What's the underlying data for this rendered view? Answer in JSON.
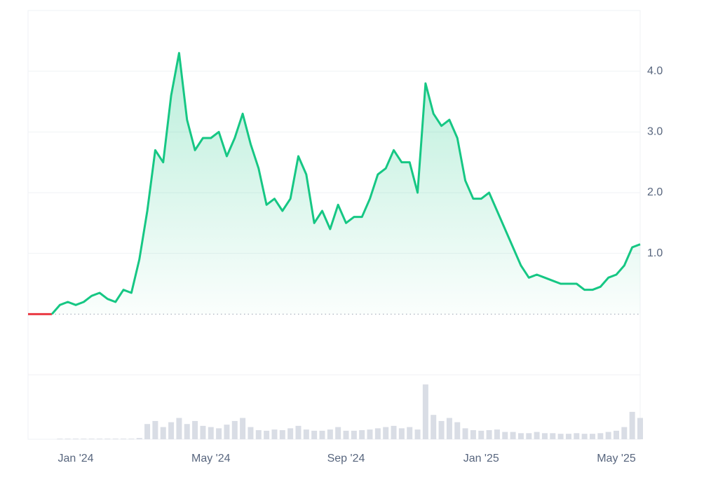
{
  "chart_data": {
    "type": "line",
    "categories": [
      null,
      null,
      null,
      null,
      null,
      null,
      "Jan '24",
      null,
      null,
      null,
      null,
      null,
      null,
      null,
      null,
      null,
      null,
      null,
      null,
      null,
      null,
      null,
      null,
      "May '24",
      null,
      null,
      null,
      null,
      null,
      null,
      null,
      null,
      null,
      null,
      null,
      null,
      null,
      null,
      null,
      null,
      "Sep '24",
      null,
      null,
      null,
      null,
      null,
      null,
      null,
      null,
      null,
      null,
      null,
      null,
      null,
      null,
      null,
      null,
      "Jan '25",
      null,
      null,
      null,
      null,
      null,
      null,
      null,
      null,
      null,
      null,
      null,
      null,
      null,
      null,
      null,
      null,
      "May '25",
      null,
      null,
      null
    ],
    "series": [
      {
        "color": "#16c784",
        "down_color": "#ea3943",
        "values": [
          0,
          0,
          0,
          0,
          0.15,
          0.2,
          0.15,
          0.2,
          0.3,
          0.35,
          0.25,
          0.2,
          0.4,
          0.35,
          0.9,
          1.7,
          2.7,
          2.5,
          3.6,
          4.3,
          3.2,
          2.7,
          2.9,
          2.9,
          3.0,
          2.6,
          2.9,
          3.3,
          2.8,
          2.4,
          1.8,
          1.9,
          1.7,
          1.9,
          2.6,
          2.3,
          1.5,
          1.7,
          1.4,
          1.8,
          1.5,
          1.6,
          1.6,
          1.9,
          2.3,
          2.4,
          2.7,
          2.5,
          2.5,
          2.0,
          3.8,
          3.3,
          3.1,
          3.2,
          2.9,
          2.2,
          1.9,
          1.9,
          2.0,
          1.7,
          1.4,
          1.1,
          0.8,
          0.6,
          0.65,
          0.6,
          0.55,
          0.5,
          0.5,
          0.5,
          0.4,
          0.4,
          0.45,
          0.6,
          0.65,
          0.8,
          1.1,
          1.15
        ]
      }
    ],
    "volume": {
      "color": "#d9dde5",
      "vlim": [
        0,
        100
      ],
      "values": [
        0,
        0,
        0,
        0,
        1,
        1,
        1,
        1,
        1,
        1,
        1,
        1,
        1,
        1,
        2,
        25,
        30,
        20,
        28,
        35,
        25,
        30,
        22,
        20,
        18,
        24,
        30,
        35,
        20,
        15,
        14,
        16,
        15,
        18,
        22,
        16,
        14,
        14,
        16,
        20,
        14,
        14,
        15,
        16,
        18,
        20,
        22,
        18,
        20,
        16,
        90,
        40,
        30,
        35,
        28,
        18,
        15,
        14,
        15,
        16,
        12,
        12,
        10,
        10,
        12,
        10,
        10,
        9,
        9,
        10,
        9,
        9,
        10,
        12,
        14,
        20,
        45,
        35
      ]
    },
    "ylim": [
      -1,
      5
    ],
    "yticks": [
      {
        "value": 1,
        "label": "1.0"
      },
      {
        "value": 2,
        "label": "2.0"
      },
      {
        "value": 3,
        "label": "3.0"
      },
      {
        "value": 4,
        "label": "4.0"
      }
    ],
    "grid": true
  }
}
